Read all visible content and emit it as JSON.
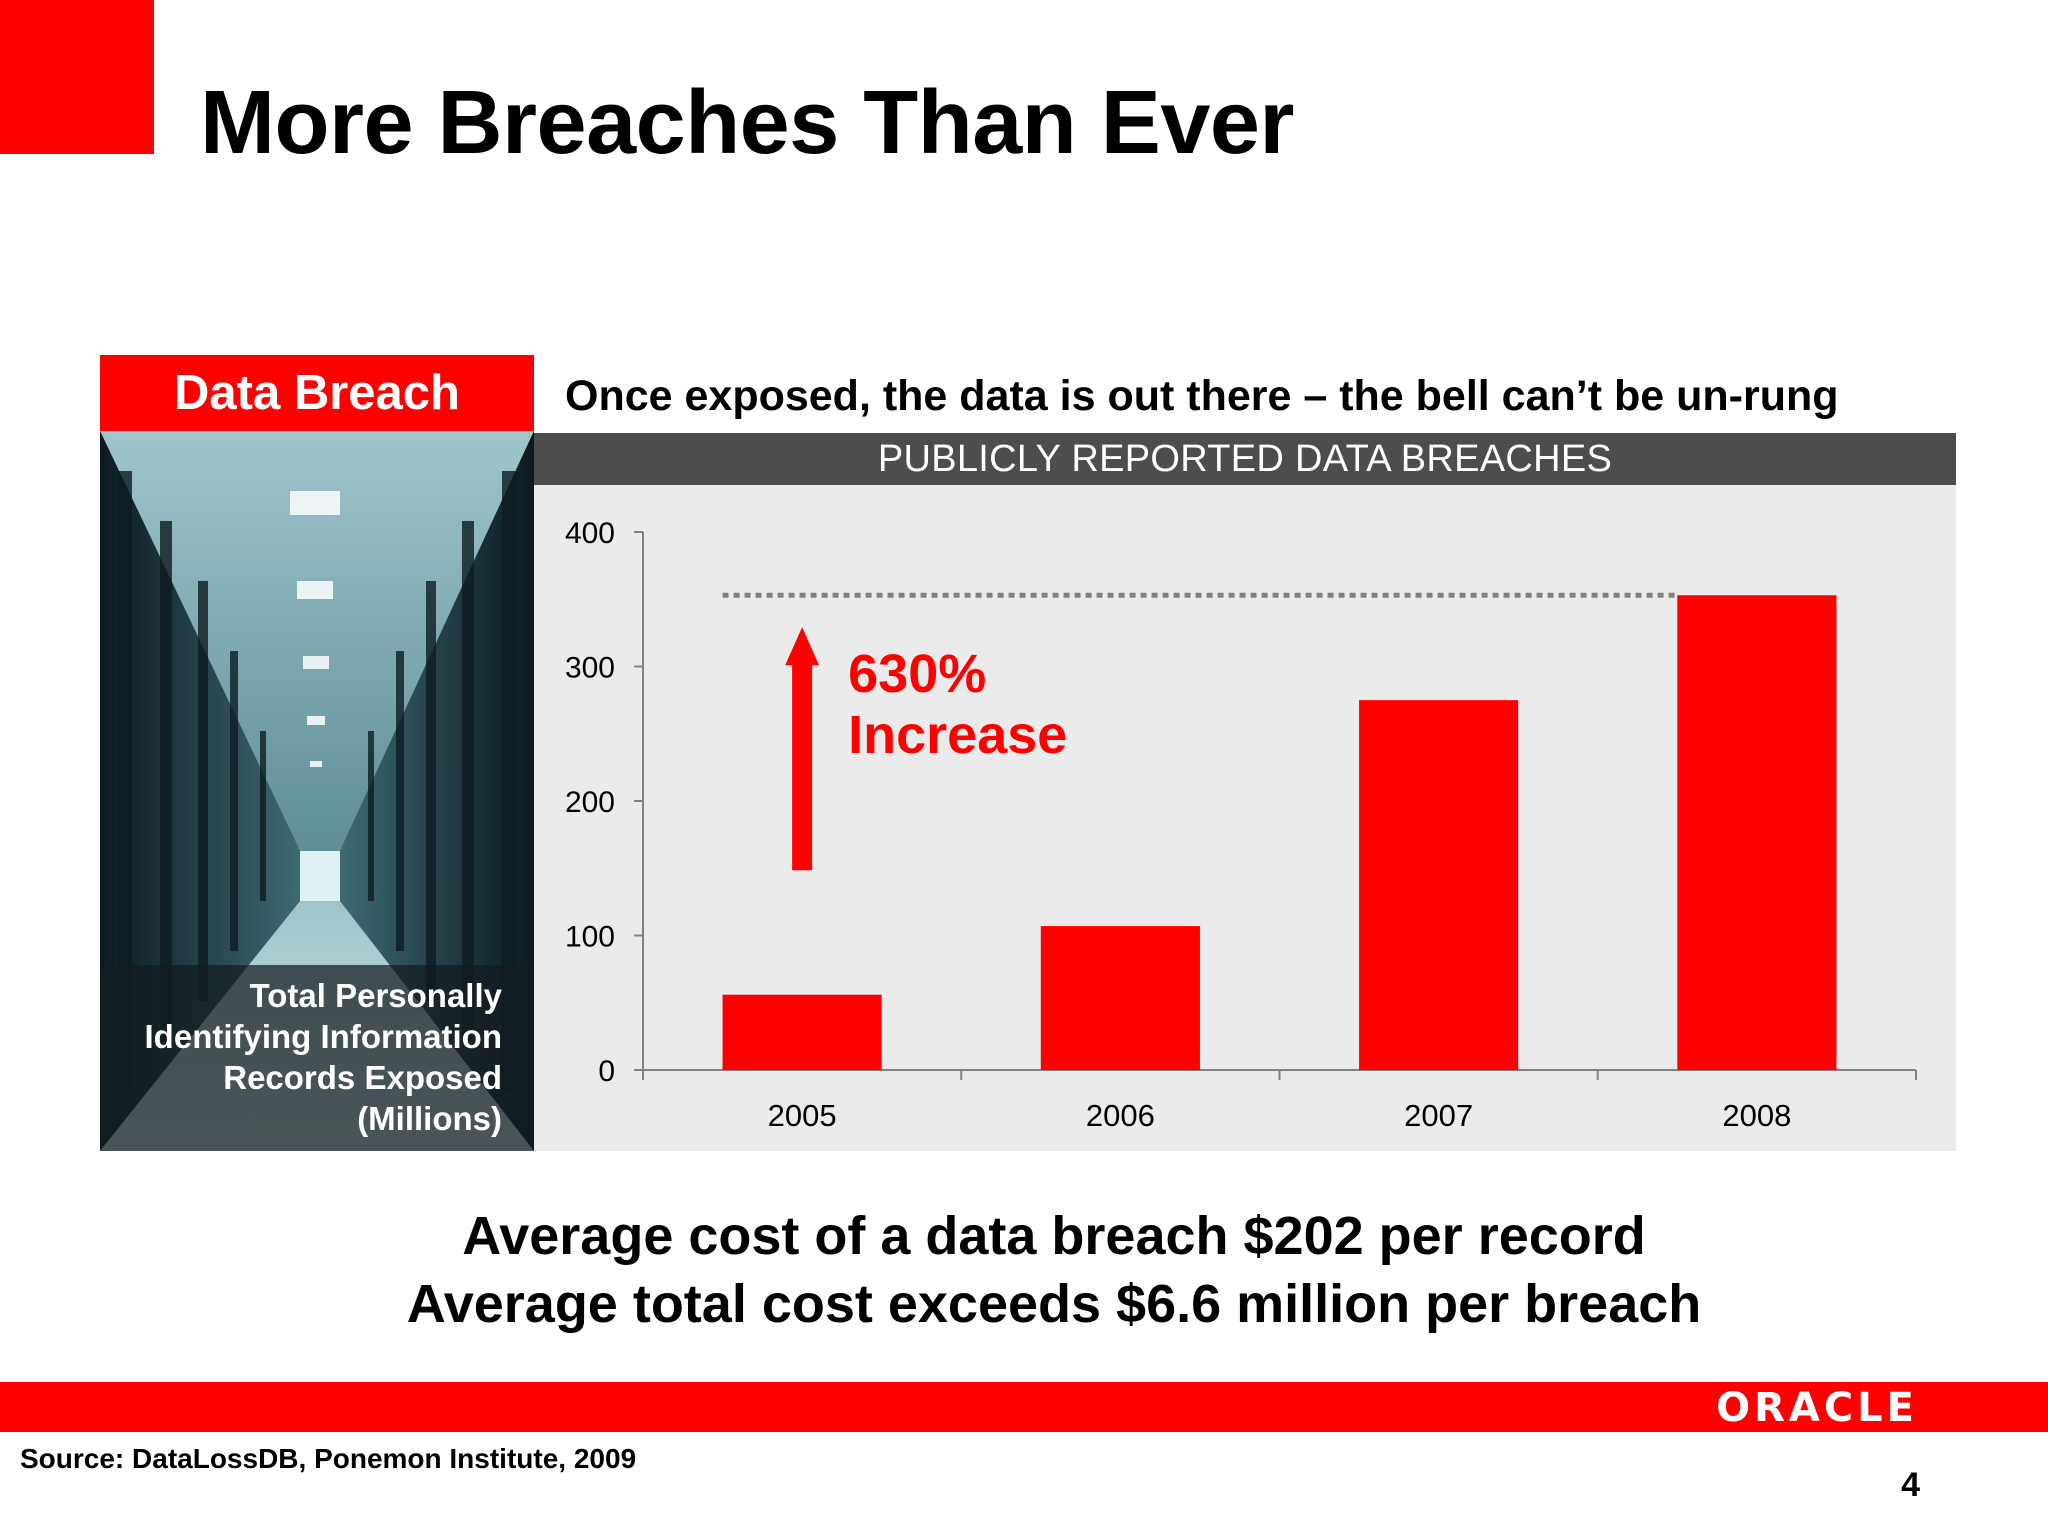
{
  "slide": {
    "title": "More Breaches Than Ever",
    "panel_header": "Data Breach",
    "photo_caption": "Total Personally Identifying Information Records Exposed (Millions)",
    "subtitle": "Once exposed, the data is out there – the bell can’t be un-rung",
    "footer_line1": "Average cost of a data breach $202 per record",
    "footer_line2": "Average total cost exceeds $6.6 million per breach",
    "source": "Source: DataLossDB, Ponemon Institute, 2009",
    "page_number": "4",
    "logo_text": "ORACLE",
    "colors": {
      "accent": "#ff0000",
      "band": "#4d4d4f",
      "chart_bg": "#ebebeb"
    }
  },
  "chart_data": {
    "type": "bar",
    "title": "PUBLICLY REPORTED DATA BREACHES",
    "categories": [
      "2005",
      "2006",
      "2007",
      "2008"
    ],
    "values": [
      56,
      107,
      275,
      353
    ],
    "ylim": [
      0,
      400
    ],
    "yticks": [
      0,
      100,
      200,
      300,
      400
    ],
    "xlabel": "",
    "ylabel": "",
    "bar_color": "#ff0000",
    "grid": false,
    "reference_line": {
      "value": 353,
      "style": "dotted"
    },
    "annotation": {
      "line1": "630%",
      "line2": "Increase",
      "color": "#ff0000",
      "arrow": "up"
    }
  }
}
